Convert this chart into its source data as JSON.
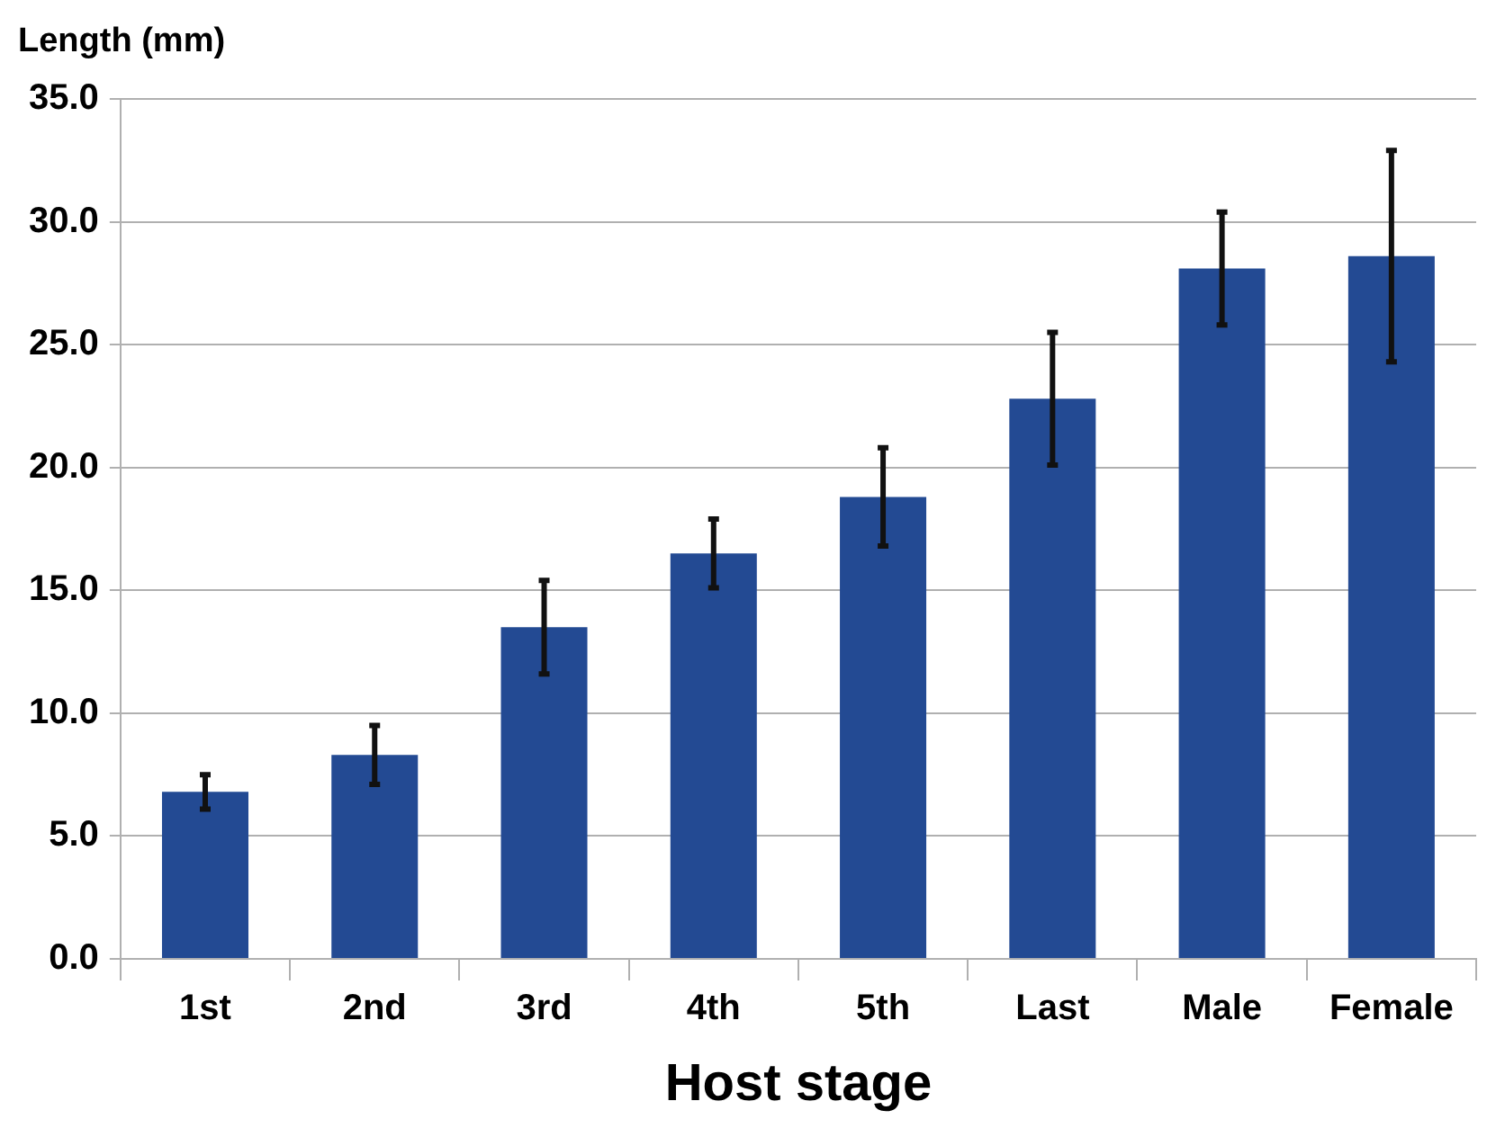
{
  "chart_data": {
    "type": "bar",
    "ylabel": "Length (mm)",
    "xlabel": "Host stage",
    "categories": [
      "1st",
      "2nd",
      "3rd",
      "4th",
      "5th",
      "Last",
      "Male",
      "Female"
    ],
    "values": [
      6.8,
      8.3,
      13.5,
      16.5,
      18.8,
      22.8,
      28.1,
      28.6
    ],
    "errors": [
      0.7,
      1.2,
      1.9,
      1.4,
      2.0,
      2.7,
      2.3,
      4.3
    ],
    "color": "#234a93",
    "ylim": [
      0,
      35
    ],
    "yticks": [
      {
        "value": 0,
        "label": "0.0"
      },
      {
        "value": 5,
        "label": "5.0"
      },
      {
        "value": 10,
        "label": "10.0"
      },
      {
        "value": 15,
        "label": "15.0"
      },
      {
        "value": 20,
        "label": "20.0"
      },
      {
        "value": 25,
        "label": "25.0"
      },
      {
        "value": 30,
        "label": "30.0"
      },
      {
        "value": 35,
        "label": "35.0"
      }
    ],
    "grid": "y"
  }
}
